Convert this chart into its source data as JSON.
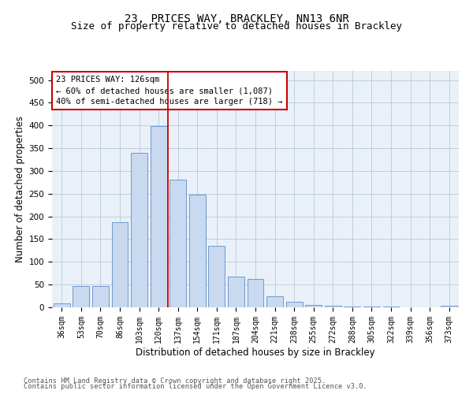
{
  "title_line1": "23, PRICES WAY, BRACKLEY, NN13 6NR",
  "title_line2": "Size of property relative to detached houses in Brackley",
  "xlabel": "Distribution of detached houses by size in Brackley",
  "ylabel": "Number of detached properties",
  "bar_labels": [
    "36sqm",
    "53sqm",
    "70sqm",
    "86sqm",
    "103sqm",
    "120sqm",
    "137sqm",
    "154sqm",
    "171sqm",
    "187sqm",
    "204sqm",
    "221sqm",
    "238sqm",
    "255sqm",
    "272sqm",
    "288sqm",
    "305sqm",
    "322sqm",
    "339sqm",
    "356sqm",
    "373sqm"
  ],
  "bar_values": [
    8,
    46,
    46,
    187,
    340,
    399,
    280,
    247,
    135,
    68,
    62,
    25,
    12,
    5,
    3,
    2,
    1,
    1,
    0,
    0,
    3
  ],
  "bar_color": "#c9d9f0",
  "bar_edge_color": "#5b8fc9",
  "vline_x": 5.5,
  "vline_color": "#cc0000",
  "annotation_title": "23 PRICES WAY: 126sqm",
  "annotation_line1": "← 60% of detached houses are smaller (1,087)",
  "annotation_line2": "40% of semi-detached houses are larger (718) →",
  "annotation_box_color": "#cc0000",
  "annotation_bg_color": "#ffffff",
  "ylim": [
    0,
    520
  ],
  "yticks": [
    0,
    50,
    100,
    150,
    200,
    250,
    300,
    350,
    400,
    450,
    500
  ],
  "footnote_line1": "Contains HM Land Registry data © Crown copyright and database right 2025.",
  "footnote_line2": "Contains public sector information licensed under the Open Government Licence v3.0.",
  "bg_color": "#ffffff",
  "plot_bg_color": "#eaf0f8",
  "grid_color": "#b8c8dc",
  "title_fontsize": 10,
  "subtitle_fontsize": 9,
  "axis_label_fontsize": 8.5,
  "tick_fontsize": 7,
  "annotation_fontsize": 7.5,
  "footnote_fontsize": 6.2
}
